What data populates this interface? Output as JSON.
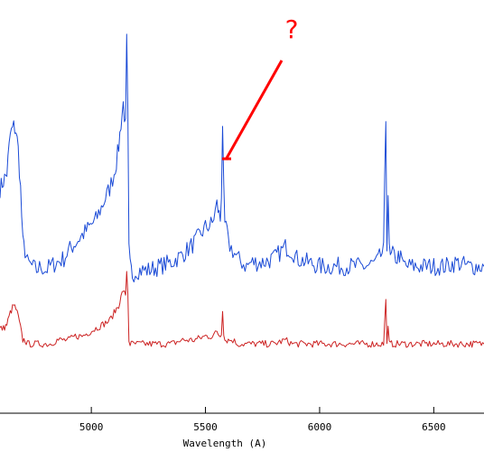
{
  "chart_data": {
    "type": "line",
    "xlabel": "Wavelength (A)",
    "ylabel": "",
    "title": "",
    "xlim": [
      4600,
      6720
    ],
    "ylim": [
      0,
      100
    ],
    "x_ticks": [
      5000,
      5500,
      6000,
      6500
    ],
    "grid": false,
    "legend": "none",
    "series": [
      {
        "color": "#1a4ad6",
        "x": [
          4600,
          4615,
          4630,
          4645,
          4660,
          4670,
          4680,
          4690,
          4700,
          4710,
          4720,
          4740,
          4760,
          4780,
          4800,
          4820,
          4850,
          4880,
          4900,
          4930,
          4960,
          4990,
          5020,
          5050,
          5080,
          5100,
          5110,
          5120,
          5130,
          5140,
          5150,
          5155,
          5160,
          5165,
          5170,
          5180,
          5200,
          5250,
          5300,
          5350,
          5400,
          5450,
          5500,
          5530,
          5550,
          5565,
          5570,
          5575,
          5580,
          5585,
          5590,
          5600,
          5620,
          5640,
          5660,
          5680,
          5700,
          5750,
          5800,
          5850,
          5880,
          5900,
          5950,
          6000,
          6050,
          6100,
          6150,
          6200,
          6250,
          6280,
          6290,
          6295,
          6300,
          6305,
          6310,
          6320,
          6340,
          6350,
          6360,
          6380,
          6400,
          6450,
          6500,
          6550,
          6600,
          6650,
          6720
        ],
        "y": [
          56,
          58,
          60,
          70,
          72,
          71,
          66,
          56,
          42,
          40,
          37,
          36,
          35,
          36,
          35,
          36,
          37,
          38,
          40,
          42,
          44,
          46,
          48,
          52,
          56,
          60,
          63,
          67,
          73,
          78,
          72,
          94,
          74,
          40,
          36,
          34,
          35,
          35,
          36,
          37,
          39,
          42,
          46,
          47,
          52,
          48,
          55,
          73,
          55,
          45,
          47,
          42,
          40,
          38,
          37,
          36,
          37,
          37,
          38,
          41,
          40,
          38,
          37,
          36,
          36,
          36,
          36,
          36,
          37,
          40,
          74,
          42,
          55,
          40,
          38,
          39,
          38,
          39,
          37,
          36,
          36,
          36,
          36,
          36,
          37,
          36,
          36
        ]
      },
      {
        "color": "#cc2222",
        "x": [
          4600,
          4615,
          4630,
          4645,
          4660,
          4670,
          4680,
          4690,
          4700,
          4710,
          4720,
          4740,
          4760,
          4780,
          4800,
          4820,
          4850,
          4880,
          4900,
          4930,
          4960,
          4990,
          5020,
          5050,
          5080,
          5100,
          5110,
          5120,
          5130,
          5140,
          5150,
          5155,
          5160,
          5165,
          5170,
          5180,
          5200,
          5250,
          5300,
          5350,
          5400,
          5450,
          5500,
          5530,
          5550,
          5565,
          5570,
          5575,
          5580,
          5585,
          5590,
          5600,
          5620,
          5640,
          5660,
          5680,
          5700,
          5750,
          5800,
          5850,
          5880,
          5900,
          5950,
          6000,
          6050,
          6100,
          6150,
          6200,
          6250,
          6280,
          6290,
          6295,
          6300,
          6305,
          6310,
          6320,
          6340,
          6350,
          6360,
          6380,
          6400,
          6450,
          6500,
          6550,
          6600,
          6650,
          6720
        ],
        "y": [
          20,
          20,
          21,
          24,
          26,
          25,
          23,
          20,
          17,
          17,
          16,
          16,
          16,
          16,
          16,
          16,
          17,
          17,
          17,
          18,
          18,
          19,
          20,
          21,
          22,
          24,
          25,
          26,
          28,
          30,
          28,
          35,
          29,
          17,
          16,
          16,
          16,
          16,
          16,
          16,
          17,
          17,
          18,
          18,
          19,
          18,
          19,
          25,
          19,
          17,
          17,
          17,
          17,
          16,
          16,
          16,
          16,
          16,
          16,
          17,
          16,
          16,
          16,
          16,
          16,
          16,
          16,
          16,
          16,
          16,
          27,
          17,
          20,
          16,
          16,
          16,
          16,
          16,
          16,
          16,
          16,
          16,
          16,
          16,
          16,
          16,
          16
        ]
      }
    ],
    "annotations": [
      {
        "text": "?",
        "color": "#ff0000"
      }
    ]
  }
}
